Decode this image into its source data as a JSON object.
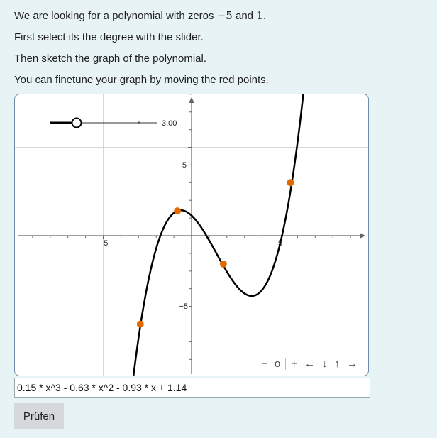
{
  "instructions": {
    "line1_prefix": "We are looking for a polynomial with zeros ",
    "zero1": "−5",
    "line1_and": " and ",
    "zero2": "1.",
    "line2": "First select its the degree with the slider.",
    "line3": "Then sketch the graph of the polynomial.",
    "line4": "You can finetune your graph by moving the red points."
  },
  "slider": {
    "value_label": "3.00",
    "value": 3,
    "min": 1,
    "max": 10
  },
  "graph": {
    "x_tick_labels": [
      "−5",
      "5"
    ],
    "y_tick_labels": [
      "5",
      "−5"
    ],
    "xrange": [
      -10,
      10
    ],
    "yrange": [
      -10,
      10
    ],
    "curve_color": "#000000",
    "point_color": "#e06a00",
    "points": [
      {
        "x": -2.9,
        "y": -5.0
      },
      {
        "x": -0.8,
        "y": 1.4
      },
      {
        "x": 1.8,
        "y": -1.6
      },
      {
        "x": 5.6,
        "y": 3.0
      }
    ]
  },
  "toolbar": {
    "minus": "−",
    "circle": "o",
    "plus": "+",
    "left": "←",
    "down": "↓",
    "up": "↑",
    "right": "→"
  },
  "formula": {
    "value": "0.15 * x^3 - 0.63 * x^2 - 0.93 * x + 1.14"
  },
  "check_button": {
    "label": "Prüfen"
  }
}
